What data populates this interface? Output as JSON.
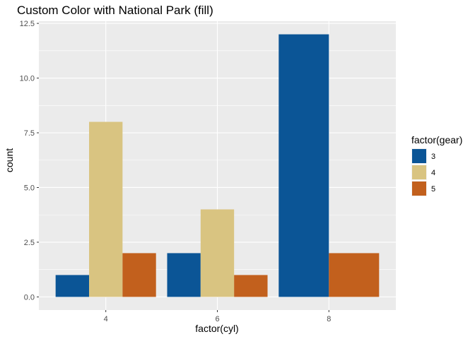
{
  "chart_data": {
    "type": "bar",
    "title": "Custom Color with National Park (fill)",
    "xlabel": "factor(cyl)",
    "ylabel": "count",
    "categories": [
      "4",
      "6",
      "8"
    ],
    "ylim": [
      -0.6,
      12.6
    ],
    "yticks": [
      0.0,
      2.5,
      5.0,
      7.5,
      10.0,
      12.5
    ],
    "ytick_labels": [
      "0.0",
      "2.5",
      "5.0",
      "7.5",
      "10.0",
      "12.5"
    ],
    "grid": true,
    "legend": {
      "title": "factor(gear)",
      "position": "right"
    },
    "series": [
      {
        "name": "3",
        "color": "#0B5596",
        "values": [
          1,
          2,
          12
        ]
      },
      {
        "name": "4",
        "color": "#D9C481",
        "values": [
          8,
          4,
          0
        ]
      },
      {
        "name": "5",
        "color": "#C2601D",
        "values": [
          2,
          1,
          2
        ]
      }
    ]
  }
}
